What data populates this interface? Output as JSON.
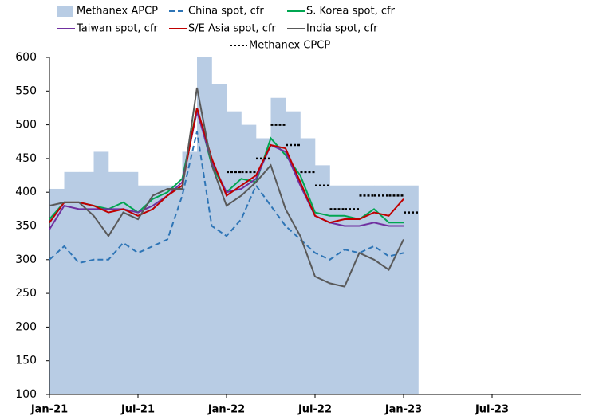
{
  "chart_data": {
    "type": "line",
    "x": [
      "2021-01",
      "2021-02",
      "2021-03",
      "2021-04",
      "2021-05",
      "2021-06",
      "2021-07",
      "2021-08",
      "2021-09",
      "2021-10",
      "2021-11",
      "2021-12",
      "2022-01",
      "2022-02",
      "2022-03",
      "2022-04",
      "2022-05",
      "2022-06",
      "2022-07",
      "2022-08",
      "2022-09",
      "2022-10",
      "2022-11",
      "2022-12",
      "2023-01"
    ],
    "series": [
      {
        "name": "Methanex APCP",
        "color": "#b8cce4",
        "style": "area",
        "values": [
          405,
          430,
          430,
          460,
          430,
          430,
          410,
          410,
          410,
          460,
          600,
          560,
          520,
          500,
          480,
          540,
          520,
          480,
          440,
          410,
          410,
          410,
          410,
          410,
          410
        ]
      },
      {
        "name": "China spot, cfr",
        "color": "#2e75b6",
        "style": "dashed",
        "values": [
          300,
          320,
          295,
          300,
          300,
          325,
          310,
          320,
          330,
          395,
          490,
          350,
          335,
          360,
          410,
          380,
          350,
          330,
          310,
          300,
          315,
          310,
          320,
          305,
          310
        ]
      },
      {
        "name": "S. Korea spot, cfr",
        "color": "#00a651",
        "style": "solid",
        "values": [
          360,
          385,
          385,
          380,
          375,
          385,
          370,
          390,
          400,
          420,
          525,
          440,
          400,
          420,
          415,
          480,
          455,
          425,
          370,
          365,
          365,
          360,
          375,
          355,
          355
        ]
      },
      {
        "name": "Taiwan spot, cfr",
        "color": "#7030a0",
        "style": "solid",
        "values": [
          345,
          380,
          375,
          375,
          375,
          375,
          370,
          380,
          395,
          415,
          520,
          445,
          400,
          405,
          420,
          470,
          460,
          410,
          365,
          355,
          350,
          350,
          355,
          350,
          350
        ]
      },
      {
        "name": "S/E Asia spot, cfr",
        "color": "#c00000",
        "style": "solid",
        "values": [
          355,
          385,
          385,
          380,
          370,
          375,
          365,
          375,
          395,
          410,
          525,
          450,
          395,
          410,
          425,
          470,
          465,
          415,
          365,
          355,
          360,
          360,
          370,
          365,
          390
        ]
      },
      {
        "name": "India spot, cfr",
        "color": "#595959",
        "style": "solid",
        "values": [
          380,
          385,
          385,
          365,
          335,
          370,
          360,
          395,
          405,
          405,
          555,
          440,
          380,
          395,
          415,
          440,
          375,
          335,
          275,
          265,
          260,
          310,
          300,
          285,
          330
        ]
      },
      {
        "name": "Methanex CPCP",
        "color": "#000000",
        "style": "step-dashed",
        "values": [
          null,
          null,
          null,
          null,
          null,
          null,
          null,
          null,
          null,
          null,
          null,
          null,
          430,
          430,
          450,
          500,
          470,
          430,
          410,
          375,
          375,
          395,
          395,
          395,
          370
        ]
      }
    ],
    "xlim": [
      "2021-01",
      "2024-01"
    ],
    "xticks": [
      {
        "value": "2021-01",
        "label": "Jan-21"
      },
      {
        "value": "2021-07",
        "label": "Jul-21"
      },
      {
        "value": "2022-01",
        "label": "Jan-22"
      },
      {
        "value": "2022-07",
        "label": "Jul-22"
      },
      {
        "value": "2023-01",
        "label": "Jan-23"
      },
      {
        "value": "2023-07",
        "label": "Jul-23"
      }
    ],
    "ylim": [
      100,
      600
    ],
    "yticks": [
      100,
      150,
      200,
      250,
      300,
      350,
      400,
      450,
      500,
      550,
      600
    ],
    "grid": false
  }
}
